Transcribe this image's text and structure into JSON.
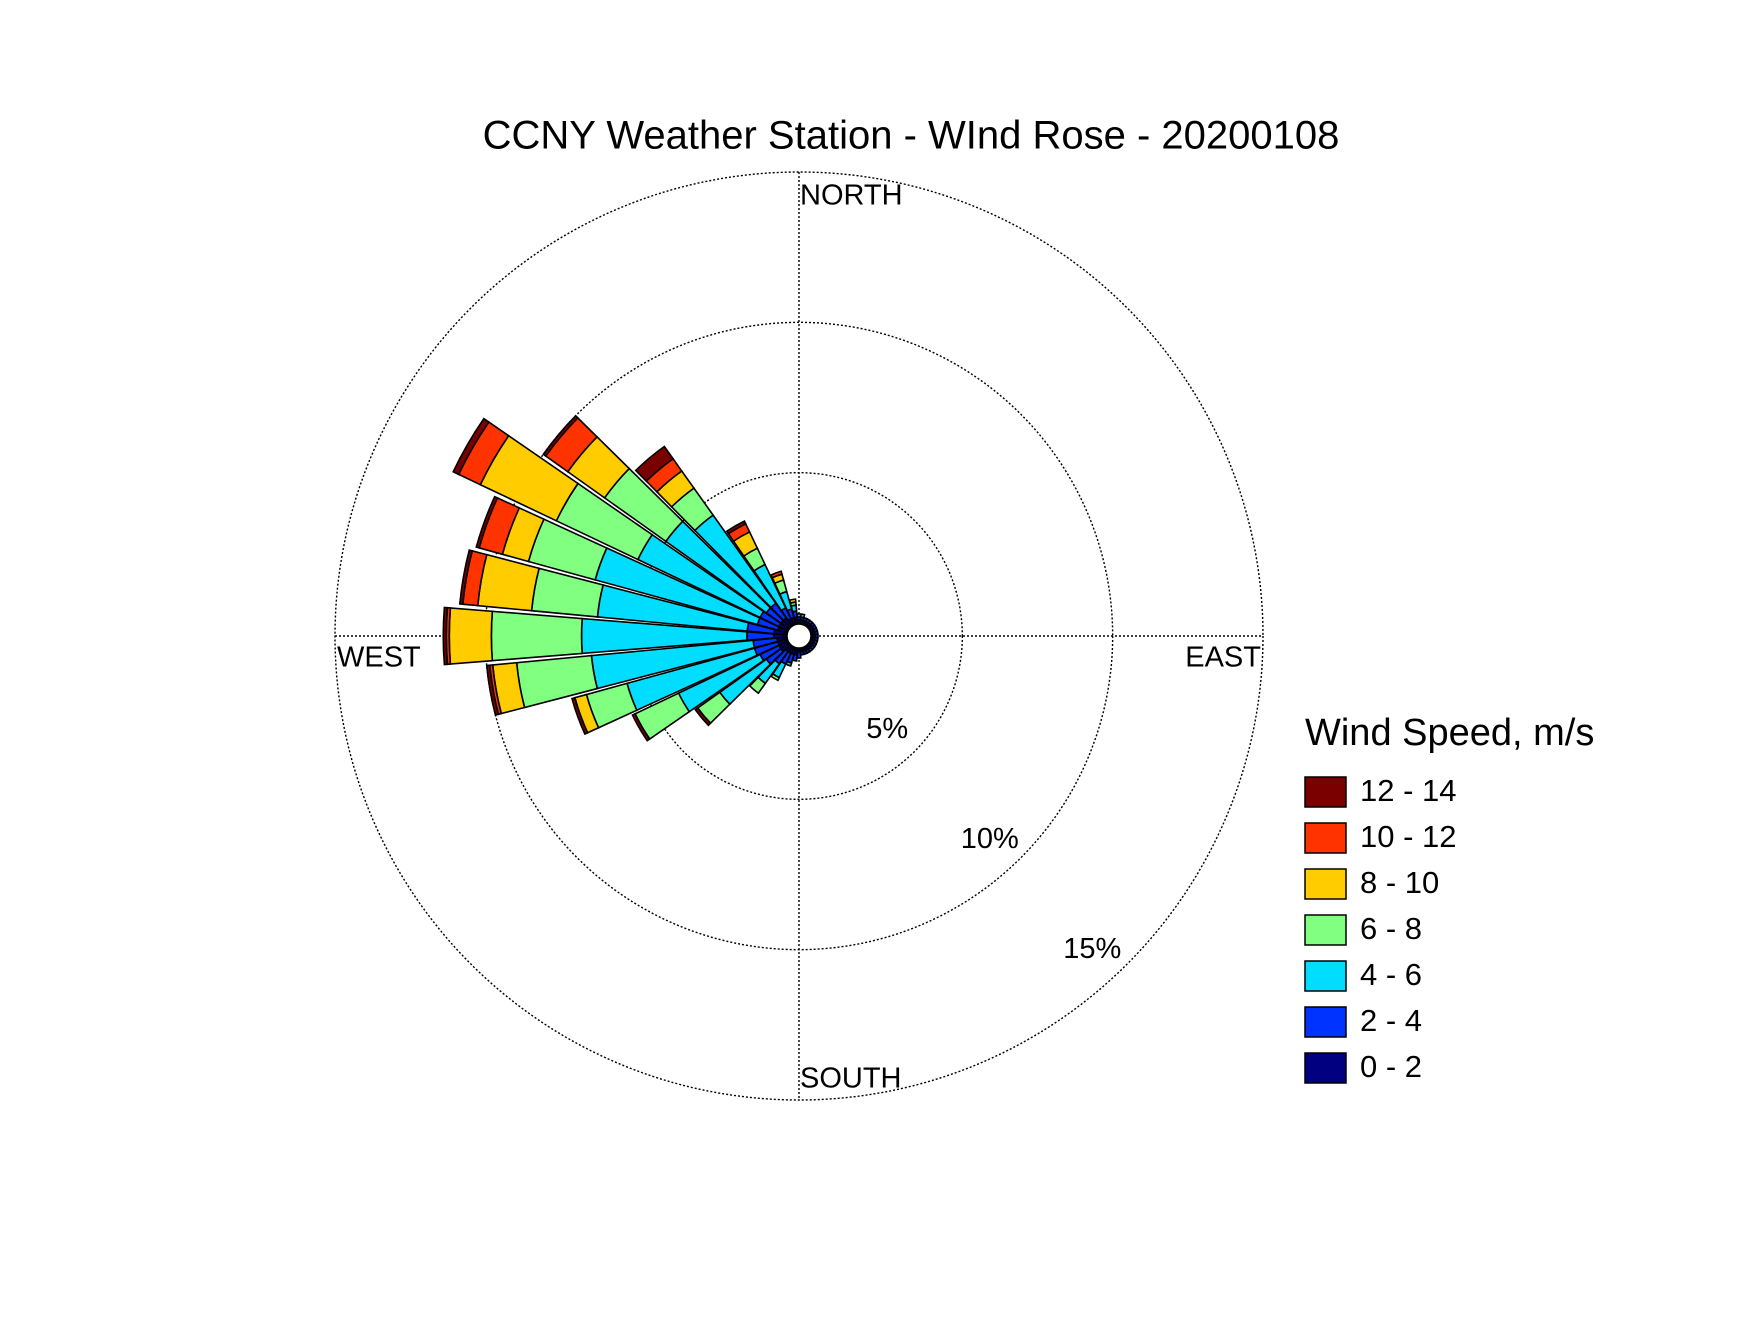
{
  "chart_data": {
    "type": "windrose",
    "title": "CCNY Weather Station - WInd Rose - 20200108",
    "direction_labels": [
      "NORTH",
      "EAST",
      "SOUTH",
      "WEST"
    ],
    "legend_title": "Wind Speed, m/s",
    "theta": [
      0,
      10,
      20,
      30,
      40,
      50,
      60,
      70,
      80,
      90,
      100,
      110,
      120,
      130,
      140,
      150,
      160,
      170,
      180,
      190,
      200,
      210,
      220,
      230,
      240,
      250,
      260,
      270,
      280,
      290,
      300,
      310,
      320,
      330,
      340,
      350
    ],
    "rlim": [
      0,
      15
    ],
    "rticks": [
      {
        "value": 5,
        "label": "5%"
      },
      {
        "value": 10,
        "label": "10%"
      },
      {
        "value": 15,
        "label": "15%"
      }
    ],
    "grid": true,
    "legend": "right",
    "series": [
      {
        "name": "0 - 2",
        "color": "#000080",
        "values": [
          0.1,
          0.1,
          0.1,
          0.1,
          0.1,
          0.1,
          0.1,
          0.1,
          0.1,
          0.1,
          0.1,
          0.1,
          0.1,
          0.1,
          0.1,
          0.1,
          0.1,
          0.1,
          0.1,
          0.2,
          0.2,
          0.2,
          0.2,
          0.3,
          0.3,
          0.3,
          0.3,
          0.4,
          0.4,
          0.3,
          0.3,
          0.3,
          0.3,
          0.2,
          0.2,
          0.2
        ]
      },
      {
        "name": "2 - 4",
        "color": "#0033ff",
        "values": [
          0.1,
          0.1,
          0.1,
          0.1,
          0.1,
          0.1,
          0.1,
          0.1,
          0.1,
          0.1,
          0.1,
          0.1,
          0.1,
          0.1,
          0.1,
          0.1,
          0.1,
          0.1,
          0.2,
          0.2,
          0.3,
          0.4,
          0.5,
          0.6,
          0.7,
          0.8,
          0.8,
          0.9,
          0.9,
          0.7,
          0.7,
          0.6,
          0.6,
          0.4,
          0.3,
          0.2
        ]
      },
      {
        "name": "4 - 6",
        "color": "#00ddff",
        "values": [
          0.1,
          0.1,
          0,
          0,
          0,
          0,
          0,
          0,
          0,
          0,
          0,
          0,
          0,
          0,
          0,
          0,
          0,
          0,
          0,
          0,
          0.1,
          0.5,
          0.8,
          1.9,
          3.0,
          4.4,
          5.4,
          5.5,
          5.0,
          5.6,
          4.5,
          4.1,
          3.6,
          1.6,
          0.6,
          0.2
        ]
      },
      {
        "name": "6 - 8",
        "color": "#80ff80",
        "values": [
          0,
          0,
          0,
          0,
          0,
          0,
          0,
          0,
          0,
          0,
          0,
          0,
          0,
          0,
          0,
          0,
          0,
          0,
          0,
          0,
          0,
          0.1,
          0.4,
          0.9,
          1.6,
          1.4,
          2.5,
          3.0,
          2.2,
          2.3,
          3.0,
          2.5,
          1.1,
          0.6,
          0.4,
          0.1
        ]
      },
      {
        "name": "8 - 10",
        "color": "#ffcc00",
        "values": [
          0,
          0,
          0,
          0,
          0,
          0,
          0,
          0,
          0,
          0,
          0,
          0,
          0,
          0,
          0,
          0,
          0,
          0,
          0,
          0,
          0,
          0,
          0,
          0,
          0,
          0.4,
          0.8,
          1.4,
          1.8,
          0.9,
          2.8,
          1.5,
          0.7,
          0.6,
          0.2,
          0.1
        ]
      },
      {
        "name": "10 - 12",
        "color": "#ff3300",
        "values": [
          0,
          0,
          0,
          0,
          0,
          0,
          0,
          0,
          0,
          0,
          0,
          0,
          0,
          0,
          0,
          0,
          0,
          0,
          0,
          0,
          0,
          0,
          0,
          0,
          0,
          0,
          0.1,
          0.1,
          0.5,
          0.8,
          0.8,
          0.9,
          0.5,
          0.3,
          0.1,
          0
        ]
      },
      {
        "name": "12 - 14",
        "color": "#7a0000",
        "values": [
          0,
          0,
          0,
          0,
          0,
          0,
          0,
          0,
          0,
          0,
          0,
          0,
          0,
          0,
          0,
          0,
          0,
          0,
          0,
          0,
          0,
          0,
          0,
          0.1,
          0.1,
          0.1,
          0.1,
          0.1,
          0.1,
          0.1,
          0.2,
          0.1,
          0.5,
          0.1,
          0,
          0
        ]
      }
    ]
  }
}
